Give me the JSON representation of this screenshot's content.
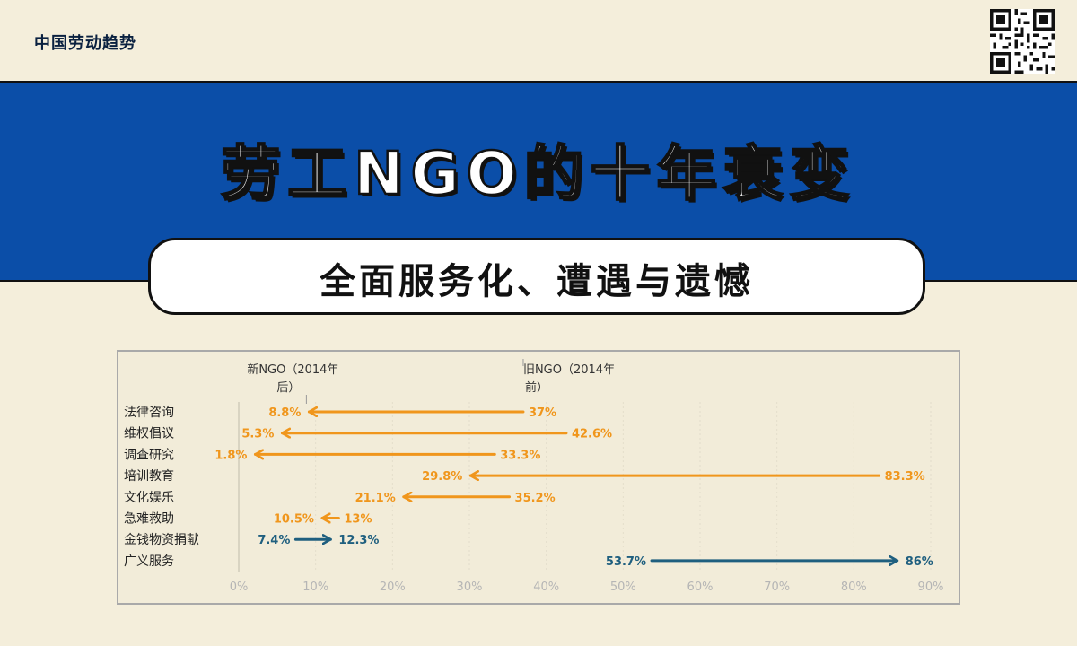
{
  "header": {
    "brand": "中国劳动趋势",
    "title": "劳工NGO的十年衰变",
    "subtitle": "全面服务化、遭遇与遗憾"
  },
  "colors": {
    "background": "#f4eedb",
    "banner": "#0b4ea8",
    "decrease": "#f0961c",
    "increase": "#1f5f7f",
    "tick_text": "#b5b5b5"
  },
  "chart_data": {
    "type": "arrow",
    "legend": {
      "new_line1": "新NGO（2014年",
      "new_line2": "后）",
      "old_line1": "旧NGO（2014年",
      "old_line2": "前）"
    },
    "x_ticks": [
      "0%",
      "10%",
      "20%",
      "30%",
      "40%",
      "50%",
      "60%",
      "70%",
      "80%",
      "90%"
    ],
    "xlim": [
      0,
      90
    ],
    "grid": true,
    "categories": [
      {
        "name": "法律咨询",
        "old": 37,
        "new": 8.8,
        "old_label": "37%",
        "new_label": "8.8%"
      },
      {
        "name": "维权倡议",
        "old": 42.6,
        "new": 5.3,
        "old_label": "42.6%",
        "new_label": "5.3%"
      },
      {
        "name": "调查研究",
        "old": 33.3,
        "new": 1.8,
        "old_label": "33.3%",
        "new_label": "1.8%"
      },
      {
        "name": "培训教育",
        "old": 83.3,
        "new": 29.8,
        "old_label": "83.3%",
        "new_label": "29.8%"
      },
      {
        "name": "文化娱乐",
        "old": 35.2,
        "new": 21.1,
        "old_label": "35.2%",
        "new_label": "21.1%"
      },
      {
        "name": "急难救助",
        "old": 13,
        "new": 10.5,
        "old_label": "13%",
        "new_label": "10.5%"
      },
      {
        "name": "金钱物资捐献",
        "old": 7.4,
        "new": 12.3,
        "old_label": "7.4%",
        "new_label": "12.3%"
      },
      {
        "name": "广义服务",
        "old": 53.7,
        "new": 86,
        "old_label": "53.7%",
        "new_label": "86%"
      }
    ]
  }
}
